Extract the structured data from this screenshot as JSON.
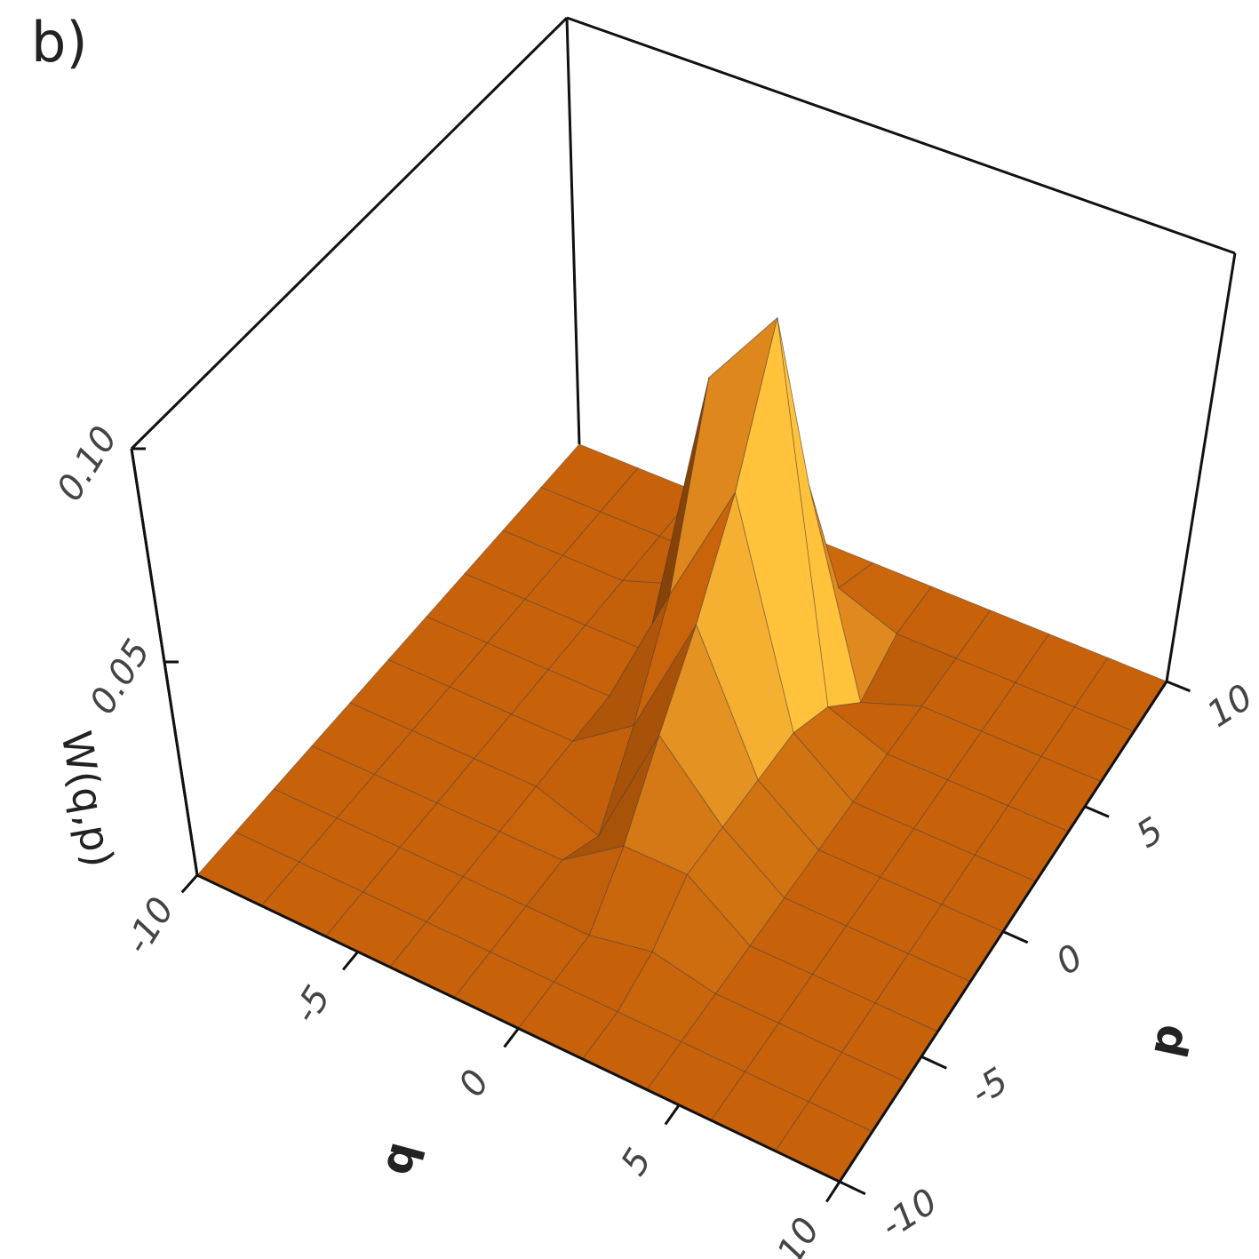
{
  "chart_data": {
    "type": "surface3d",
    "panel_label": "b)",
    "x_label": "q",
    "y_label": "p",
    "z_label": "W(q,p)",
    "x": [
      -10,
      -8,
      -6,
      -4,
      -2,
      0,
      2,
      4,
      6,
      8,
      10
    ],
    "y": [
      -10,
      -8,
      -6,
      -4,
      -2,
      0,
      2,
      4,
      6,
      8,
      10
    ],
    "z": [
      [
        0,
        0,
        0,
        0,
        0,
        0,
        0,
        0,
        0,
        0,
        0
      ],
      [
        0,
        0,
        0,
        0,
        0,
        0,
        0,
        0,
        0,
        0,
        0
      ],
      [
        0,
        0,
        0,
        0,
        0,
        0,
        0.003,
        0,
        0,
        0,
        0
      ],
      [
        0,
        0,
        0,
        0,
        0,
        0.01,
        0.01,
        0,
        0,
        0,
        0
      ],
      [
        0,
        0,
        0,
        0,
        -0.005,
        0.025,
        0.01,
        0,
        0,
        0,
        0
      ],
      [
        0,
        0,
        0,
        0,
        0.01,
        0.04,
        0.01,
        0,
        0,
        0,
        0
      ],
      [
        0,
        0,
        0,
        0,
        0.03,
        0.06,
        0.01,
        0,
        0,
        0,
        0
      ],
      [
        0,
        0,
        0,
        0,
        0.07,
        0.09,
        0.005,
        0,
        0,
        0,
        0
      ],
      [
        0,
        0,
        0,
        0.005,
        0.06,
        0.04,
        -0.005,
        0,
        0,
        0,
        0
      ],
      [
        0,
        0,
        0,
        0,
        0.01,
        0.005,
        0,
        0,
        0,
        0,
        0
      ],
      [
        0,
        0,
        0,
        0,
        0,
        0,
        0,
        0,
        0,
        0,
        0
      ]
    ],
    "xlim": [
      -10,
      10
    ],
    "ylim": [
      -10,
      10
    ],
    "zlim": [
      0,
      0.1
    ],
    "xticks": [
      -10,
      -5,
      0,
      5,
      10
    ],
    "yticks": [
      -10,
      -5,
      0,
      5,
      10
    ],
    "zticks": [
      0.05,
      {
        "value": 0.1,
        "label": "0.10"
      }
    ],
    "color_low": "#c8620a",
    "color_high": "#ffc23a"
  }
}
